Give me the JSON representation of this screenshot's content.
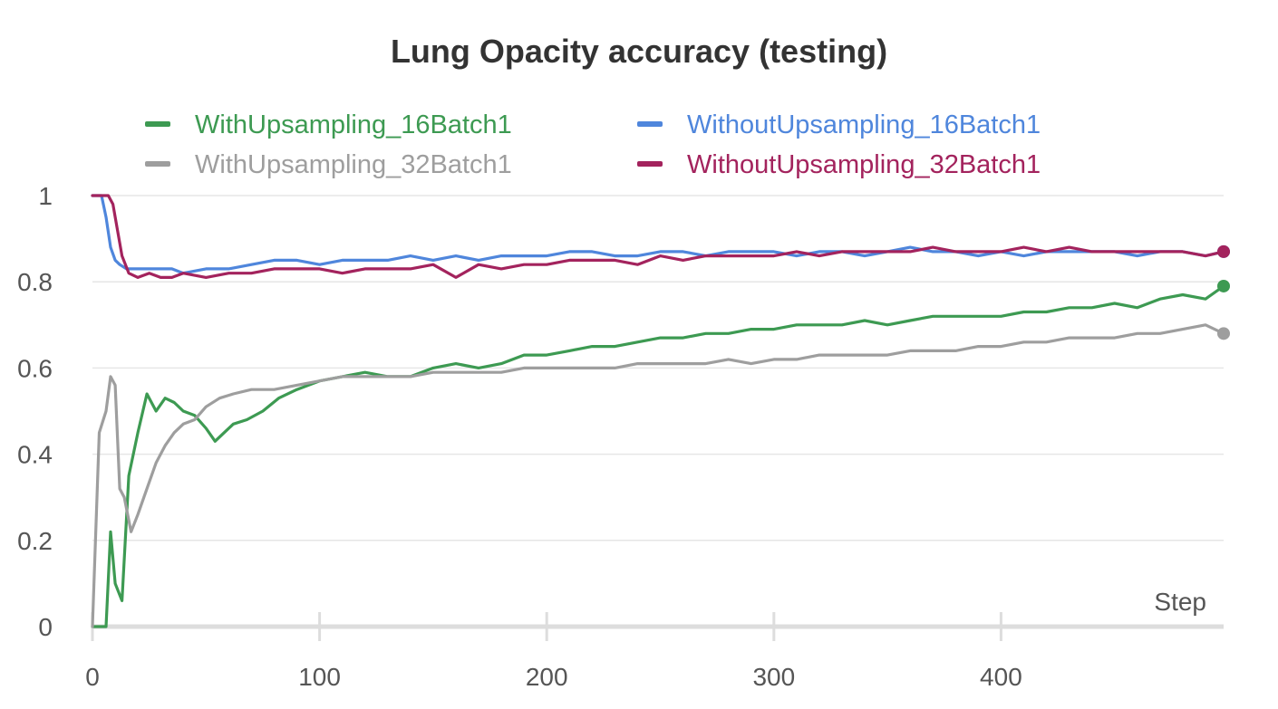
{
  "chart_data": {
    "type": "line",
    "title": "Lung Opacity accuracy (testing)",
    "xlabel": "Step",
    "ylabel": "",
    "xlim": [
      0,
      498
    ],
    "ylim": [
      0,
      1
    ],
    "x_ticks": [
      0,
      100,
      200,
      300,
      400
    ],
    "y_ticks": [
      0,
      0.2,
      0.4,
      0.6,
      0.8,
      1
    ],
    "y_tick_labels": [
      "0",
      "0.2",
      "0.4",
      "0.6",
      "0.8",
      "1"
    ],
    "grid": true,
    "legend_position": "top",
    "series": [
      {
        "name": "WithUpsampling_16Batch1",
        "color": "#3d9a52",
        "x": [
          0,
          6,
          8,
          10,
          13,
          16,
          20,
          24,
          28,
          32,
          36,
          40,
          45,
          50,
          54,
          58,
          62,
          68,
          75,
          82,
          90,
          100,
          110,
          120,
          130,
          140,
          150,
          160,
          170,
          180,
          190,
          200,
          210,
          220,
          230,
          240,
          250,
          260,
          270,
          280,
          290,
          300,
          310,
          320,
          330,
          340,
          350,
          360,
          370,
          380,
          390,
          400,
          410,
          420,
          430,
          440,
          450,
          460,
          470,
          480,
          490,
          498
        ],
        "y": [
          0,
          0,
          0.22,
          0.1,
          0.06,
          0.35,
          0.45,
          0.54,
          0.5,
          0.53,
          0.52,
          0.5,
          0.49,
          0.46,
          0.43,
          0.45,
          0.47,
          0.48,
          0.5,
          0.53,
          0.55,
          0.57,
          0.58,
          0.59,
          0.58,
          0.58,
          0.6,
          0.61,
          0.6,
          0.61,
          0.63,
          0.63,
          0.64,
          0.65,
          0.65,
          0.66,
          0.67,
          0.67,
          0.68,
          0.68,
          0.69,
          0.69,
          0.7,
          0.7,
          0.7,
          0.71,
          0.7,
          0.71,
          0.72,
          0.72,
          0.72,
          0.72,
          0.73,
          0.73,
          0.74,
          0.74,
          0.75,
          0.74,
          0.76,
          0.77,
          0.76,
          0.79
        ]
      },
      {
        "name": "WithUpsampling_32Batch1",
        "color": "#9e9e9e",
        "x": [
          0,
          3,
          6,
          8,
          10,
          12,
          14,
          17,
          20,
          24,
          28,
          32,
          36,
          40,
          45,
          50,
          56,
          62,
          70,
          80,
          90,
          100,
          110,
          120,
          130,
          140,
          150,
          160,
          170,
          180,
          190,
          200,
          210,
          220,
          230,
          240,
          250,
          260,
          270,
          280,
          290,
          300,
          310,
          320,
          330,
          340,
          350,
          360,
          370,
          380,
          390,
          400,
          410,
          420,
          430,
          440,
          450,
          460,
          470,
          480,
          490,
          498
        ],
        "y": [
          0,
          0.45,
          0.5,
          0.58,
          0.56,
          0.32,
          0.3,
          0.22,
          0.26,
          0.32,
          0.38,
          0.42,
          0.45,
          0.47,
          0.48,
          0.51,
          0.53,
          0.54,
          0.55,
          0.55,
          0.56,
          0.57,
          0.58,
          0.58,
          0.58,
          0.58,
          0.59,
          0.59,
          0.59,
          0.59,
          0.6,
          0.6,
          0.6,
          0.6,
          0.6,
          0.61,
          0.61,
          0.61,
          0.61,
          0.62,
          0.61,
          0.62,
          0.62,
          0.63,
          0.63,
          0.63,
          0.63,
          0.64,
          0.64,
          0.64,
          0.65,
          0.65,
          0.66,
          0.66,
          0.67,
          0.67,
          0.67,
          0.68,
          0.68,
          0.69,
          0.7,
          0.68
        ]
      },
      {
        "name": "WithoutUpsampling_16Batch1",
        "color": "#4f86dc",
        "x": [
          0,
          4,
          6,
          8,
          10,
          12,
          15,
          20,
          25,
          30,
          35,
          40,
          50,
          60,
          70,
          80,
          90,
          100,
          110,
          120,
          130,
          140,
          150,
          160,
          170,
          180,
          190,
          200,
          210,
          220,
          230,
          240,
          250,
          260,
          270,
          280,
          290,
          300,
          310,
          320,
          330,
          340,
          350,
          360,
          370,
          380,
          390,
          400,
          410,
          420,
          430,
          440,
          450,
          460,
          470,
          480,
          490,
          498
        ],
        "y": [
          1,
          1,
          0.95,
          0.88,
          0.85,
          0.84,
          0.83,
          0.83,
          0.83,
          0.83,
          0.83,
          0.82,
          0.83,
          0.83,
          0.84,
          0.85,
          0.85,
          0.84,
          0.85,
          0.85,
          0.85,
          0.86,
          0.85,
          0.86,
          0.85,
          0.86,
          0.86,
          0.86,
          0.87,
          0.87,
          0.86,
          0.86,
          0.87,
          0.87,
          0.86,
          0.87,
          0.87,
          0.87,
          0.86,
          0.87,
          0.87,
          0.86,
          0.87,
          0.88,
          0.87,
          0.87,
          0.86,
          0.87,
          0.86,
          0.87,
          0.87,
          0.87,
          0.87,
          0.86,
          0.87,
          0.87,
          0.86,
          0.87
        ]
      },
      {
        "name": "WithoutUpsampling_32Batch1",
        "color": "#a3235d",
        "x": [
          0,
          4,
          7,
          9,
          11,
          13,
          16,
          20,
          25,
          30,
          35,
          40,
          50,
          60,
          70,
          80,
          90,
          100,
          110,
          120,
          130,
          140,
          150,
          160,
          170,
          180,
          190,
          200,
          210,
          220,
          230,
          240,
          250,
          260,
          270,
          280,
          290,
          300,
          310,
          320,
          330,
          340,
          350,
          360,
          370,
          380,
          390,
          400,
          410,
          420,
          430,
          440,
          450,
          460,
          470,
          480,
          490,
          498
        ],
        "y": [
          1,
          1,
          1,
          0.98,
          0.92,
          0.86,
          0.82,
          0.81,
          0.82,
          0.81,
          0.81,
          0.82,
          0.81,
          0.82,
          0.82,
          0.83,
          0.83,
          0.83,
          0.82,
          0.83,
          0.83,
          0.83,
          0.84,
          0.81,
          0.84,
          0.83,
          0.84,
          0.84,
          0.85,
          0.85,
          0.85,
          0.84,
          0.86,
          0.85,
          0.86,
          0.86,
          0.86,
          0.86,
          0.87,
          0.86,
          0.87,
          0.87,
          0.87,
          0.87,
          0.88,
          0.87,
          0.87,
          0.87,
          0.88,
          0.87,
          0.88,
          0.87,
          0.87,
          0.87,
          0.87,
          0.87,
          0.86,
          0.87
        ]
      }
    ]
  }
}
